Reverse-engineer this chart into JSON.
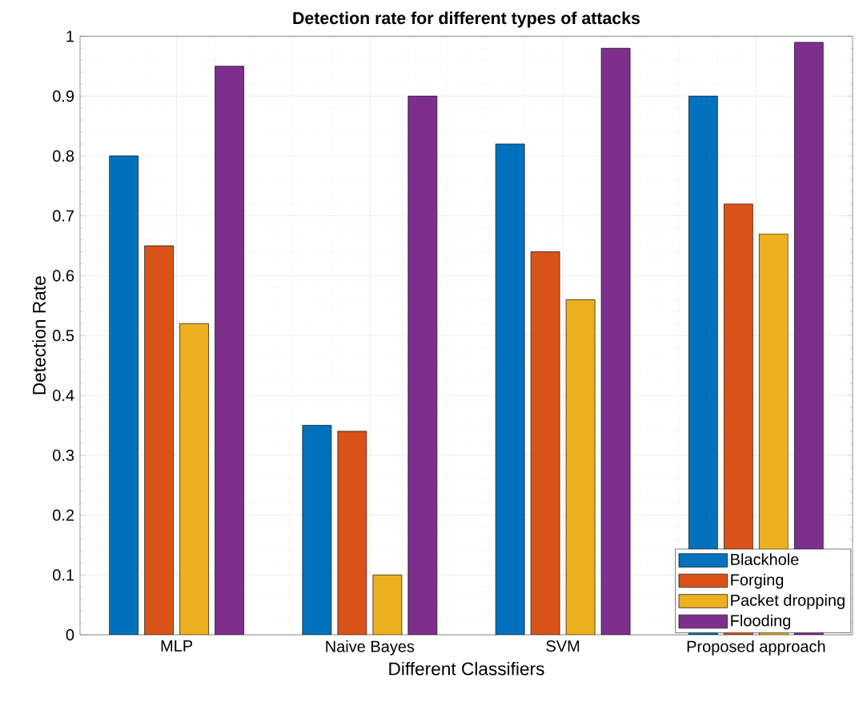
{
  "chart_data": {
    "type": "bar",
    "title": "Detection rate for different types of attacks",
    "xlabel": "Different Classifiers",
    "ylabel": "Detection Rate",
    "categories": [
      "MLP",
      "Naive Bayes",
      "SVM",
      "Proposed approach"
    ],
    "series": [
      {
        "name": "Blackhole",
        "color": "#0072bd",
        "values": [
          0.8,
          0.35,
          0.82,
          0.9
        ]
      },
      {
        "name": "Forging",
        "color": "#d95319",
        "values": [
          0.65,
          0.34,
          0.64,
          0.72
        ]
      },
      {
        "name": "Packet dropping",
        "color": "#edb120",
        "values": [
          0.52,
          0.1,
          0.56,
          0.67
        ]
      },
      {
        "name": "Flooding",
        "color": "#7e2f8e",
        "values": [
          0.95,
          0.9,
          0.98,
          0.99
        ]
      }
    ],
    "ylim": [
      0,
      1
    ],
    "yticks": [
      0,
      0.1,
      0.2,
      0.3,
      0.4,
      0.5,
      0.6,
      0.7,
      0.8,
      0.9,
      1
    ],
    "grid": true,
    "legend": "bottom right"
  }
}
